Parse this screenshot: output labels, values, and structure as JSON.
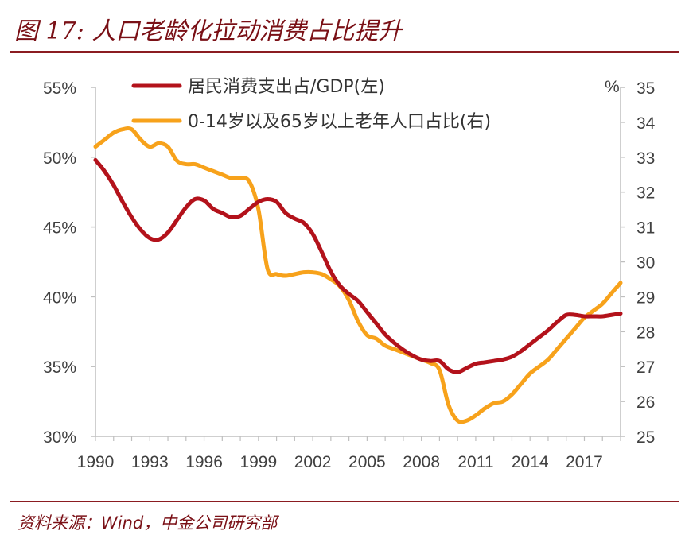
{
  "figure": {
    "title": "图 17: 人口老龄化拉动消费占比提升",
    "source": "资料来源：Wind，中金公司研究部"
  },
  "chart_data": {
    "type": "line",
    "left_axis": {
      "min": 30,
      "max": 55,
      "ticks": [
        "30%",
        "35%",
        "40%",
        "45%",
        "50%",
        "55%"
      ]
    },
    "right_axis": {
      "min": 25,
      "max": 35,
      "unit": "%",
      "ticks": [
        "25",
        "26",
        "27",
        "28",
        "29",
        "30",
        "31",
        "32",
        "33",
        "34",
        "35"
      ]
    },
    "x_axis": {
      "min": 1990,
      "max": 2019,
      "tick_labels": [
        "1990",
        "1993",
        "1996",
        "1999",
        "2002",
        "2005",
        "2008",
        "2011",
        "2014",
        "2017"
      ]
    },
    "series": [
      {
        "name": "居民消费支出占/GDP(左)",
        "axis": "left",
        "color": "#b3121b",
        "points": [
          [
            1990.0,
            49.8
          ],
          [
            1990.5,
            49.0
          ],
          [
            1991.0,
            48.0
          ],
          [
            1991.5,
            46.8
          ],
          [
            1992.0,
            45.7
          ],
          [
            1992.5,
            44.8
          ],
          [
            1993.0,
            44.2
          ],
          [
            1993.5,
            44.1
          ],
          [
            1994.0,
            44.6
          ],
          [
            1994.5,
            45.5
          ],
          [
            1995.0,
            46.4
          ],
          [
            1995.5,
            47.0
          ],
          [
            1996.0,
            46.9
          ],
          [
            1996.5,
            46.3
          ],
          [
            1997.0,
            46.0
          ],
          [
            1997.5,
            45.7
          ],
          [
            1998.0,
            45.8
          ],
          [
            1998.5,
            46.3
          ],
          [
            1999.0,
            46.8
          ],
          [
            1999.5,
            47.0
          ],
          [
            2000.0,
            46.8
          ],
          [
            2000.5,
            46.0
          ],
          [
            2001.0,
            45.6
          ],
          [
            2001.5,
            45.3
          ],
          [
            2002.0,
            44.5
          ],
          [
            2002.5,
            43.2
          ],
          [
            2003.0,
            41.8
          ],
          [
            2003.5,
            40.8
          ],
          [
            2004.0,
            40.2
          ],
          [
            2004.5,
            39.7
          ],
          [
            2005.0,
            38.9
          ],
          [
            2005.5,
            38.1
          ],
          [
            2006.0,
            37.3
          ],
          [
            2006.5,
            36.7
          ],
          [
            2007.0,
            36.2
          ],
          [
            2007.5,
            35.8
          ],
          [
            2008.0,
            35.5
          ],
          [
            2008.5,
            35.4
          ],
          [
            2009.0,
            35.4
          ],
          [
            2009.5,
            34.8
          ],
          [
            2010.0,
            34.6
          ],
          [
            2010.5,
            34.9
          ],
          [
            2011.0,
            35.2
          ],
          [
            2011.5,
            35.3
          ],
          [
            2012.0,
            35.4
          ],
          [
            2012.5,
            35.5
          ],
          [
            2013.0,
            35.7
          ],
          [
            2013.5,
            36.1
          ],
          [
            2014.0,
            36.6
          ],
          [
            2014.5,
            37.1
          ],
          [
            2015.0,
            37.6
          ],
          [
            2015.5,
            38.2
          ],
          [
            2016.0,
            38.7
          ],
          [
            2016.5,
            38.7
          ],
          [
            2017.0,
            38.6
          ],
          [
            2017.5,
            38.6
          ],
          [
            2018.0,
            38.6
          ],
          [
            2018.5,
            38.7
          ],
          [
            2019.0,
            38.8
          ]
        ]
      },
      {
        "name": "0-14岁以及65岁以上老年人口占比(右)",
        "axis": "right",
        "color": "#f7a21b",
        "points": [
          [
            1990.0,
            33.3
          ],
          [
            1990.5,
            33.5
          ],
          [
            1991.0,
            33.7
          ],
          [
            1991.5,
            33.8
          ],
          [
            1992.0,
            33.8
          ],
          [
            1992.5,
            33.5
          ],
          [
            1993.0,
            33.3
          ],
          [
            1993.5,
            33.4
          ],
          [
            1994.0,
            33.3
          ],
          [
            1994.5,
            32.9
          ],
          [
            1995.0,
            32.8
          ],
          [
            1995.5,
            32.8
          ],
          [
            1996.0,
            32.7
          ],
          [
            1996.5,
            32.6
          ],
          [
            1997.0,
            32.5
          ],
          [
            1997.5,
            32.4
          ],
          [
            1998.0,
            32.4
          ],
          [
            1998.5,
            32.3
          ],
          [
            1999.0,
            31.5
          ],
          [
            1999.5,
            29.8
          ],
          [
            2000.0,
            29.65
          ],
          [
            2000.5,
            29.6
          ],
          [
            2001.0,
            29.65
          ],
          [
            2001.5,
            29.7
          ],
          [
            2002.0,
            29.7
          ],
          [
            2002.5,
            29.65
          ],
          [
            2003.0,
            29.5
          ],
          [
            2003.5,
            29.3
          ],
          [
            2004.0,
            28.9
          ],
          [
            2004.5,
            28.3
          ],
          [
            2005.0,
            27.9
          ],
          [
            2005.5,
            27.8
          ],
          [
            2006.0,
            27.6
          ],
          [
            2006.5,
            27.5
          ],
          [
            2007.0,
            27.4
          ],
          [
            2007.5,
            27.3
          ],
          [
            2008.0,
            27.2
          ],
          [
            2008.5,
            27.1
          ],
          [
            2009.0,
            26.9
          ],
          [
            2009.5,
            25.9
          ],
          [
            2010.0,
            25.45
          ],
          [
            2010.5,
            25.45
          ],
          [
            2011.0,
            25.6
          ],
          [
            2011.5,
            25.8
          ],
          [
            2012.0,
            25.95
          ],
          [
            2012.5,
            26.0
          ],
          [
            2013.0,
            26.2
          ],
          [
            2013.5,
            26.5
          ],
          [
            2014.0,
            26.8
          ],
          [
            2014.5,
            27.0
          ],
          [
            2015.0,
            27.2
          ],
          [
            2015.5,
            27.5
          ],
          [
            2016.0,
            27.8
          ],
          [
            2016.5,
            28.1
          ],
          [
            2017.0,
            28.4
          ],
          [
            2017.5,
            28.6
          ],
          [
            2018.0,
            28.8
          ],
          [
            2018.5,
            29.1
          ],
          [
            2019.0,
            29.4
          ]
        ]
      }
    ],
    "legend": {
      "placement": "top"
    }
  }
}
